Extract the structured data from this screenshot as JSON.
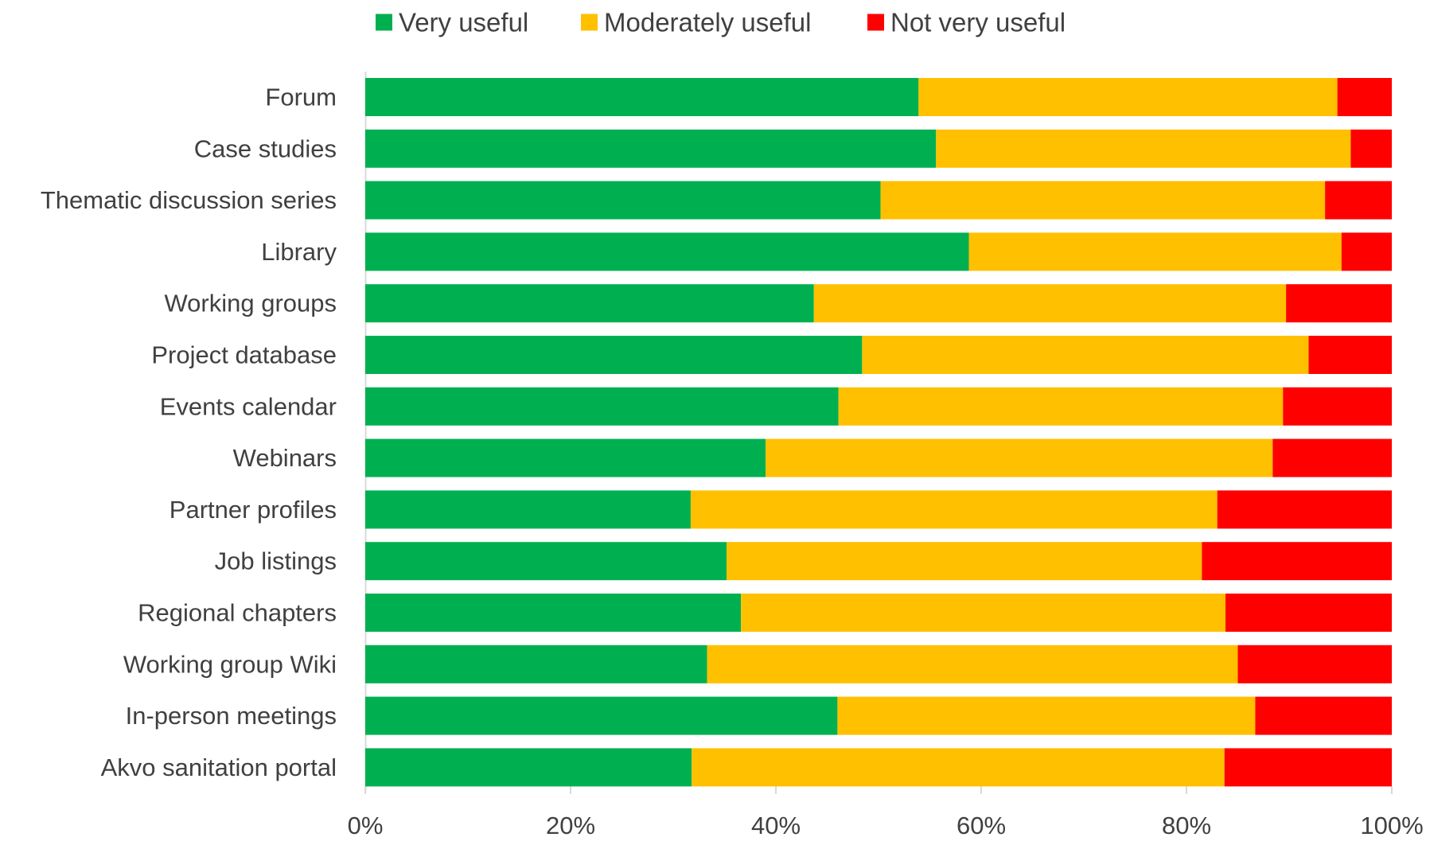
{
  "chart_data": {
    "type": "bar",
    "orientation": "horizontal",
    "stacked": true,
    "percent_stacked": true,
    "title": "",
    "xlabel": "",
    "ylabel": "",
    "categories": [
      "Forum",
      "Case studies",
      "Thematic discussion series",
      "Library",
      "Working groups",
      "Project database",
      "Events calendar",
      "Webinars",
      "Partner profiles",
      "Job listings",
      "Regional chapters",
      "Working group Wiki",
      "In-person meetings",
      "Akvo sanitation portal"
    ],
    "series": [
      {
        "name": "Very useful",
        "color": "#00b050",
        "values": [
          53.9,
          55.6,
          50.2,
          58.8,
          43.7,
          48.4,
          46.1,
          39.0,
          31.7,
          35.2,
          36.6,
          33.3,
          46.0,
          31.8
        ]
      },
      {
        "name": "Moderately useful",
        "color": "#ffc000",
        "values": [
          40.8,
          40.4,
          43.3,
          36.3,
          46.0,
          43.5,
          43.3,
          49.4,
          51.3,
          46.3,
          47.2,
          51.7,
          40.7,
          51.9
        ]
      },
      {
        "name": "Not very useful",
        "color": "#ff0000",
        "values": [
          5.3,
          4.0,
          6.5,
          4.9,
          10.3,
          8.1,
          10.6,
          11.6,
          17.0,
          18.5,
          16.2,
          15.0,
          13.3,
          16.3
        ]
      }
    ],
    "xlim": [
      0,
      100
    ],
    "xticks": [
      "0%",
      "20%",
      "40%",
      "60%",
      "80%",
      "100%"
    ],
    "grid": false,
    "legend_position": "top"
  }
}
